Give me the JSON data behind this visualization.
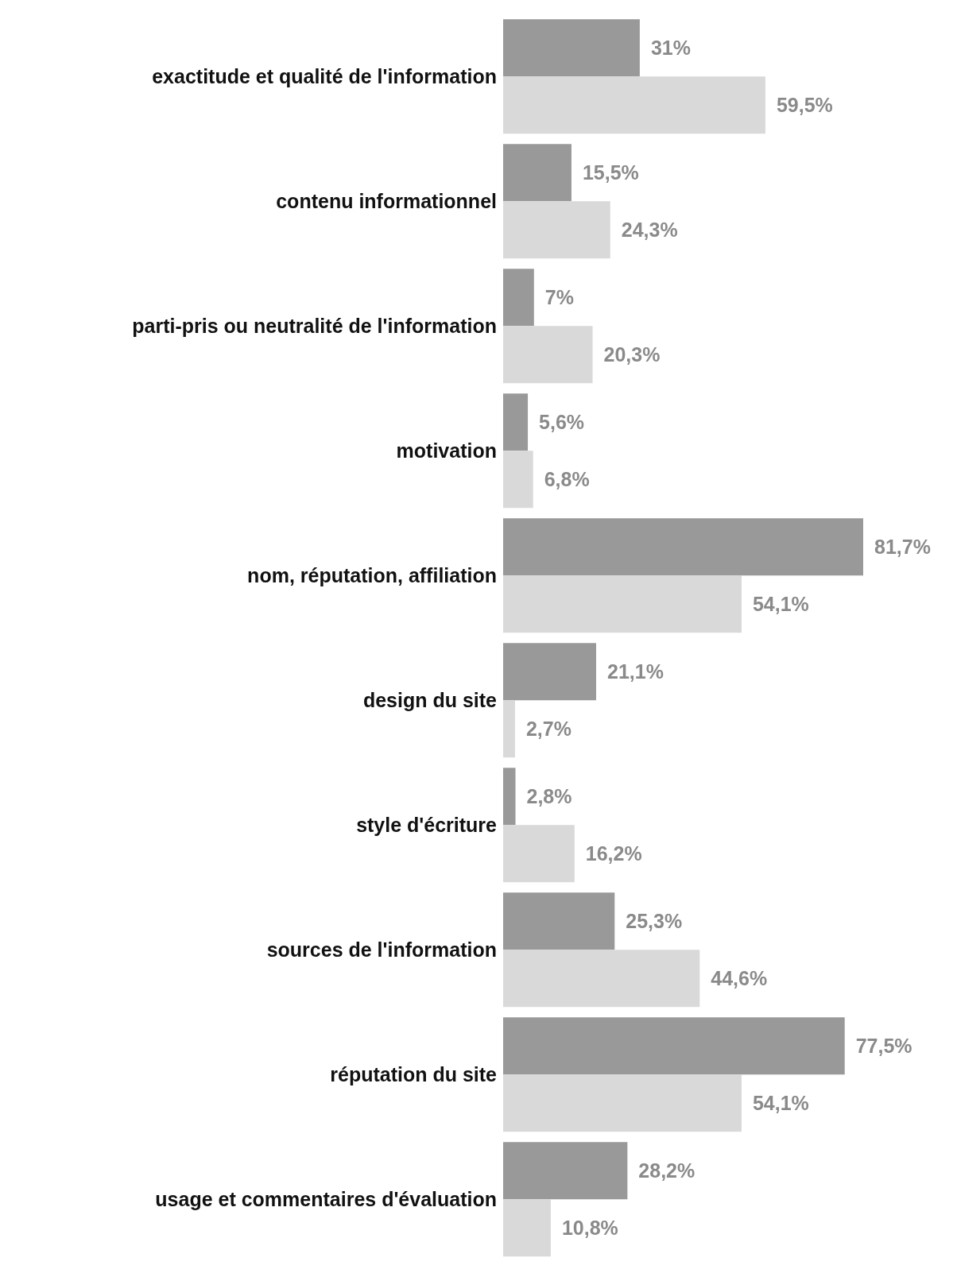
{
  "chart_data": {
    "type": "bar",
    "orientation": "horizontal",
    "categories": [
      "exactitude et qualité de l'information",
      "contenu informationnel",
      "parti-pris ou neutralité de l'information",
      "motivation",
      "nom, réputation, affiliation",
      "design du site",
      "style d'écriture",
      "sources de l'information",
      "réputation du site",
      "usage et commentaires d'évaluation"
    ],
    "series": [
      {
        "color": "#999999",
        "values": [
          31,
          15.5,
          7,
          5.6,
          81.7,
          21.1,
          2.8,
          25.3,
          77.5,
          28.2
        ],
        "value_labels": [
          "31%",
          "15,5%",
          "7%",
          "5,6%",
          "81,7%",
          "21,1%",
          "2,8%",
          "25,3%",
          "77,5%",
          "28,2%"
        ]
      },
      {
        "color": "#d9d9d9",
        "values": [
          59.5,
          24.3,
          20.3,
          6.8,
          54.1,
          2.7,
          16.2,
          44.6,
          54.1,
          10.8
        ],
        "value_labels": [
          "59,5%",
          "24,3%",
          "20,3%",
          "6,8%",
          "54,1%",
          "2,7%",
          "16,2%",
          "44,6%",
          "54,1%",
          "10,8%"
        ]
      }
    ],
    "grid": false,
    "legend": false
  }
}
